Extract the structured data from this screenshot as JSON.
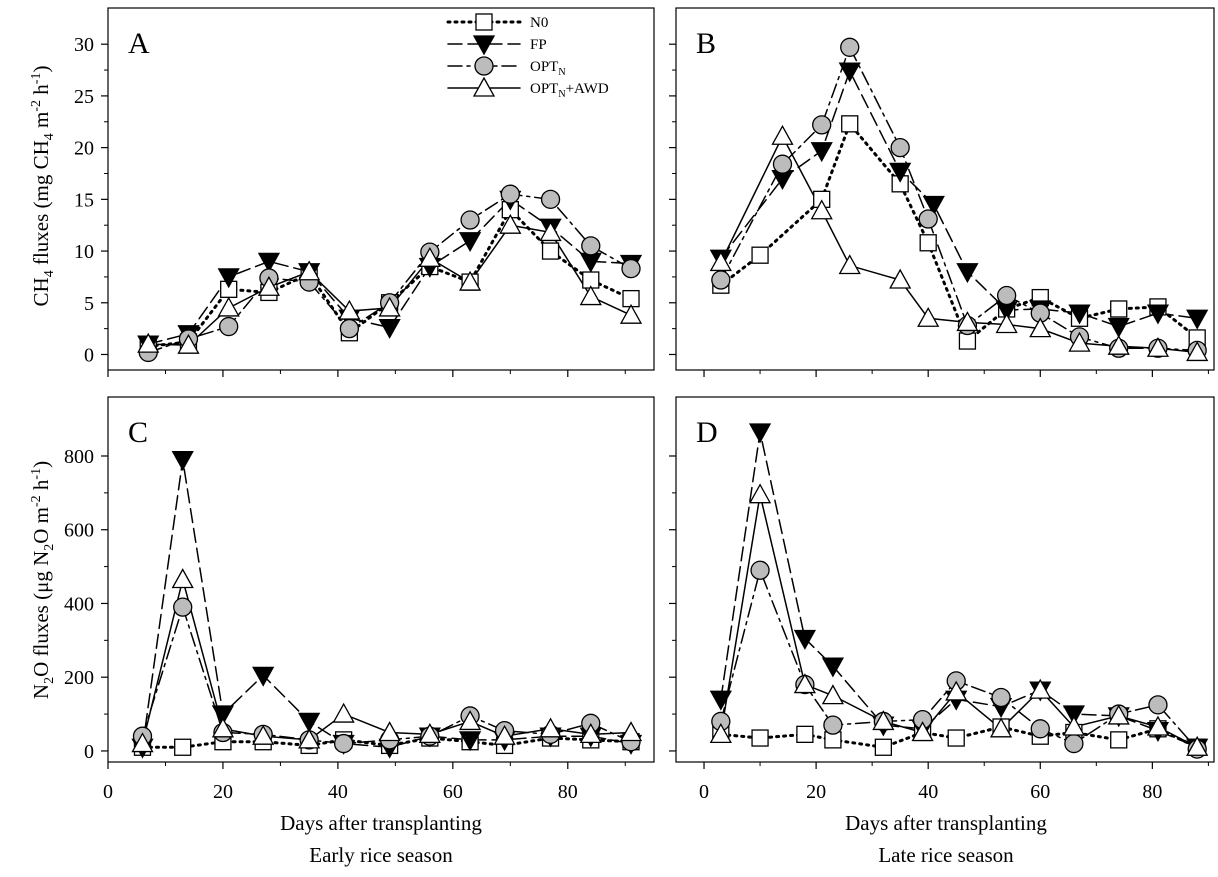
{
  "figure": {
    "y_axis_labels": {
      "ch4": {
        "pre": "CH",
        "sub1": "4",
        "mid": " fluxes (mg CH",
        "sub2": "4",
        "mid2": " m",
        "sup1": "-2",
        "mid3": " h",
        "sup2": "-1",
        "post": ")"
      },
      "n2o": {
        "pre": "N",
        "sub1": "2",
        "mid": "O fluxes (μg N",
        "sub2": "2",
        "mid2": "O m",
        "sup1": "-2",
        "mid3": " h",
        "sup2": "-1",
        "post": ")"
      }
    },
    "x_axis_label": "Days after transplanting",
    "season_left": "Early rice season",
    "season_right": "Late rice season",
    "legend": [
      {
        "key": "N0",
        "text": "N0",
        "sub": "",
        "tail": ""
      },
      {
        "key": "FP",
        "text": "FP",
        "sub": "",
        "tail": ""
      },
      {
        "key": "OPT",
        "text": "OPT",
        "sub": "N",
        "tail": ""
      },
      {
        "key": "AWD",
        "text": "OPT",
        "sub": "N",
        "tail": "+AWD"
      }
    ],
    "series_styles": {
      "N0": {
        "dash": "2,5",
        "marker": "square",
        "fill": "#ffffff"
      },
      "FP": {
        "dash": "14,6",
        "marker": "triangle-down",
        "fill": "#000000"
      },
      "OPT": {
        "dash": "14,5,3,5",
        "marker": "circle",
        "fill": "#bcbcbc"
      },
      "AWD": {
        "dash": "",
        "marker": "triangle-up",
        "fill": "#ffffff"
      }
    }
  },
  "chart_data": [
    {
      "panel": "A",
      "type": "line",
      "xlim": [
        0,
        95
      ],
      "ylim": [
        -1.5,
        33.5
      ],
      "xticks": [
        0,
        20,
        40,
        60,
        80
      ],
      "yticks": [
        0,
        5,
        10,
        15,
        20,
        25,
        30
      ],
      "series": [
        {
          "name": "N0",
          "points": [
            [
              7,
              0.8
            ],
            [
              14,
              1.2
            ],
            [
              21,
              6.3
            ],
            [
              28,
              6.0
            ],
            [
              35,
              7.8
            ],
            [
              42,
              2.1
            ],
            [
              49,
              5.0
            ],
            [
              56,
              8.5
            ],
            [
              63,
              7.0
            ],
            [
              70,
              14.0
            ],
            [
              77,
              10.0
            ],
            [
              84,
              7.2
            ],
            [
              91,
              5.4
            ]
          ]
        },
        {
          "name": "FP",
          "points": [
            [
              7,
              1.0
            ],
            [
              14,
              2.0
            ],
            [
              21,
              7.5
            ],
            [
              28,
              9.0
            ],
            [
              35,
              8.0
            ],
            [
              42,
              3.5
            ],
            [
              49,
              2.6
            ],
            [
              56,
              8.5
            ],
            [
              63,
              11.0
            ],
            [
              70,
              15.0
            ],
            [
              77,
              12.3
            ],
            [
              84,
              9.0
            ],
            [
              91,
              8.8
            ]
          ]
        },
        {
          "name": "OPT",
          "points": [
            [
              7,
              0.2
            ],
            [
              14,
              1.5
            ],
            [
              21,
              2.7
            ],
            [
              28,
              7.4
            ],
            [
              35,
              7.0
            ],
            [
              42,
              2.5
            ],
            [
              49,
              5.0
            ],
            [
              56,
              9.9
            ],
            [
              63,
              13.0
            ],
            [
              70,
              15.5
            ],
            [
              77,
              15.0
            ],
            [
              84,
              10.5
            ],
            [
              91,
              8.3
            ]
          ]
        },
        {
          "name": "AWD",
          "points": [
            [
              7,
              1.0
            ],
            [
              14,
              0.9
            ],
            [
              21,
              4.5
            ],
            [
              28,
              6.5
            ],
            [
              35,
              8.0
            ],
            [
              42,
              4.2
            ],
            [
              49,
              4.5
            ],
            [
              56,
              9.3
            ],
            [
              63,
              7.0
            ],
            [
              70,
              12.5
            ],
            [
              77,
              11.8
            ],
            [
              84,
              5.6
            ],
            [
              91,
              3.8
            ]
          ]
        }
      ]
    },
    {
      "panel": "B",
      "type": "line",
      "xlim": [
        -5,
        91
      ],
      "ylim": [
        -1.5,
        33.5
      ],
      "xticks": [
        0,
        20,
        40,
        60,
        80
      ],
      "yticks": [
        0,
        5,
        10,
        15,
        20,
        25,
        30
      ],
      "series": [
        {
          "name": "N0",
          "points": [
            [
              3,
              6.7
            ],
            [
              10,
              9.6
            ],
            [
              21,
              15.0
            ],
            [
              26,
              22.3
            ],
            [
              35,
              16.5
            ],
            [
              40,
              10.8
            ],
            [
              47,
              1.3
            ],
            [
              54,
              4.4
            ],
            [
              60,
              5.5
            ],
            [
              67,
              3.5
            ],
            [
              74,
              4.4
            ],
            [
              81,
              4.6
            ],
            [
              88,
              1.6
            ]
          ]
        },
        {
          "name": "FP",
          "points": [
            [
              3,
              9.3
            ],
            [
              14,
              17.0
            ],
            [
              21,
              19.7
            ],
            [
              26,
              27.4
            ],
            [
              35,
              17.7
            ],
            [
              41,
              14.5
            ],
            [
              47,
              8.0
            ],
            [
              54,
              4.3
            ],
            [
              60,
              4.4
            ],
            [
              67,
              4.0
            ],
            [
              74,
              2.7
            ],
            [
              81,
              4.0
            ],
            [
              88,
              3.5
            ]
          ]
        },
        {
          "name": "OPT",
          "points": [
            [
              3,
              7.2
            ],
            [
              14,
              18.4
            ],
            [
              21,
              22.2
            ],
            [
              26,
              29.7
            ],
            [
              35,
              20.0
            ],
            [
              40,
              13.1
            ],
            [
              47,
              2.8
            ],
            [
              54,
              5.7
            ],
            [
              60,
              4.0
            ],
            [
              67,
              1.7
            ],
            [
              74,
              0.6
            ],
            [
              81,
              0.6
            ],
            [
              88,
              0.4
            ]
          ]
        },
        {
          "name": "AWD",
          "points": [
            [
              3,
              8.9
            ],
            [
              14,
              21.1
            ],
            [
              21,
              13.9
            ],
            [
              26,
              8.6
            ],
            [
              35,
              7.2
            ],
            [
              40,
              3.5
            ],
            [
              47,
              3.1
            ],
            [
              54,
              2.9
            ],
            [
              60,
              2.5
            ],
            [
              67,
              1.1
            ],
            [
              74,
              0.8
            ],
            [
              81,
              0.6
            ],
            [
              88,
              0.2
            ]
          ]
        }
      ]
    },
    {
      "panel": "C",
      "type": "line",
      "xlim": [
        0,
        95
      ],
      "ylim": [
        -30,
        960
      ],
      "xticks": [
        0,
        20,
        40,
        60,
        80
      ],
      "xticklabels": [
        "0",
        "20",
        "40",
        "60",
        "80"
      ],
      "yticks": [
        0,
        200,
        400,
        600,
        800
      ],
      "series": [
        {
          "name": "N0",
          "points": [
            [
              6,
              10
            ],
            [
              13,
              10
            ],
            [
              20,
              25
            ],
            [
              27,
              25
            ],
            [
              35,
              15
            ],
            [
              41,
              30
            ],
            [
              49,
              15
            ],
            [
              56,
              35
            ],
            [
              63,
              25
            ],
            [
              69,
              15
            ],
            [
              77,
              35
            ],
            [
              84,
              30
            ],
            [
              91,
              25
            ]
          ]
        },
        {
          "name": "FP",
          "points": [
            [
              6,
              10
            ],
            [
              13,
              790
            ],
            [
              20,
              100
            ],
            [
              27,
              205
            ],
            [
              35,
              80
            ],
            [
              41,
              20
            ],
            [
              49,
              10
            ],
            [
              56,
              40
            ],
            [
              63,
              30
            ],
            [
              69,
              30
            ],
            [
              77,
              40
            ],
            [
              84,
              40
            ],
            [
              91,
              20
            ]
          ]
        },
        {
          "name": "OPT",
          "points": [
            [
              6,
              40
            ],
            [
              13,
              390
            ],
            [
              20,
              50
            ],
            [
              27,
              45
            ],
            [
              35,
              30
            ],
            [
              41,
              20
            ],
            [
              49,
              30
            ],
            [
              56,
              40
            ],
            [
              63,
              95
            ],
            [
              69,
              55
            ],
            [
              77,
              45
            ],
            [
              84,
              75
            ],
            [
              91,
              25
            ]
          ]
        },
        {
          "name": "AWD",
          "points": [
            [
              6,
              20
            ],
            [
              13,
              465
            ],
            [
              20,
              60
            ],
            [
              27,
              40
            ],
            [
              35,
              30
            ],
            [
              41,
              100
            ],
            [
              49,
              50
            ],
            [
              56,
              45
            ],
            [
              63,
              80
            ],
            [
              69,
              40
            ],
            [
              77,
              60
            ],
            [
              84,
              45
            ],
            [
              91,
              50
            ]
          ]
        }
      ]
    },
    {
      "panel": "D",
      "type": "line",
      "xlim": [
        -5,
        91
      ],
      "ylim": [
        -30,
        960
      ],
      "xticks": [
        0,
        20,
        40,
        60,
        80
      ],
      "xticklabels": [
        "0",
        "20",
        "40",
        "60",
        "80"
      ],
      "yticks": [
        0,
        200,
        400,
        600,
        800
      ],
      "series": [
        {
          "name": "N0",
          "points": [
            [
              3,
              45
            ],
            [
              10,
              35
            ],
            [
              18,
              45
            ],
            [
              23,
              30
            ],
            [
              32,
              10
            ],
            [
              39,
              50
            ],
            [
              45,
              35
            ],
            [
              53,
              65
            ],
            [
              60,
              40
            ],
            [
              66,
              50
            ],
            [
              74,
              30
            ],
            [
              81,
              60
            ],
            [
              88,
              10
            ]
          ]
        },
        {
          "name": "FP",
          "points": [
            [
              3,
              140
            ],
            [
              10,
              865
            ],
            [
              18,
              305
            ],
            [
              23,
              230
            ],
            [
              32,
              70
            ],
            [
              39,
              60
            ],
            [
              45,
              140
            ],
            [
              53,
              120
            ],
            [
              60,
              165
            ],
            [
              66,
              100
            ],
            [
              74,
              95
            ],
            [
              81,
              55
            ],
            [
              88,
              10
            ]
          ]
        },
        {
          "name": "OPT",
          "points": [
            [
              3,
              80
            ],
            [
              10,
              490
            ],
            [
              18,
              180
            ],
            [
              23,
              70
            ],
            [
              32,
              80
            ],
            [
              39,
              85
            ],
            [
              45,
              190
            ],
            [
              53,
              145
            ],
            [
              60,
              60
            ],
            [
              66,
              20
            ],
            [
              74,
              100
            ],
            [
              81,
              125
            ],
            [
              88,
              5
            ]
          ]
        },
        {
          "name": "AWD",
          "points": [
            [
              3,
              45
            ],
            [
              10,
              695
            ],
            [
              18,
              180
            ],
            [
              23,
              150
            ],
            [
              32,
              80
            ],
            [
              39,
              50
            ],
            [
              45,
              160
            ],
            [
              53,
              60
            ],
            [
              60,
              165
            ],
            [
              66,
              65
            ],
            [
              74,
              95
            ],
            [
              81,
              65
            ],
            [
              88,
              10
            ]
          ]
        }
      ]
    }
  ]
}
